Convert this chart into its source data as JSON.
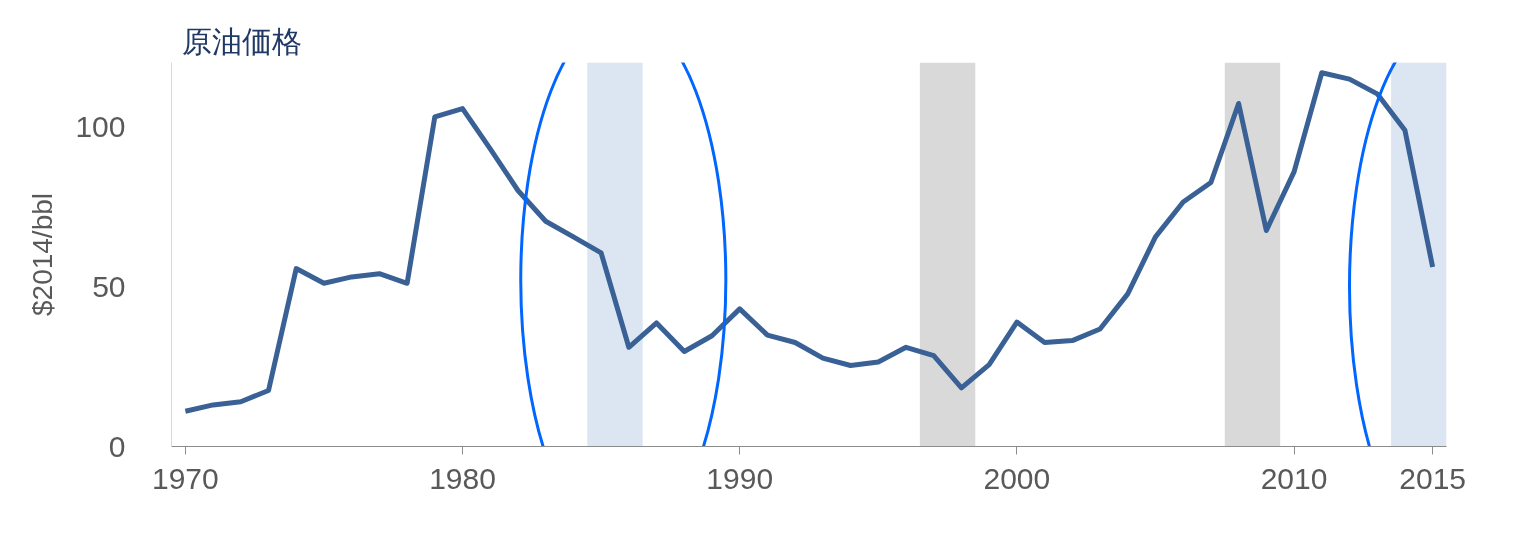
{
  "chart_data": {
    "type": "line",
    "title": "原油価格",
    "ylabel": "$2014/bbl",
    "x": [
      1970,
      1971,
      1972,
      1973,
      1974,
      1975,
      1976,
      1977,
      1978,
      1979,
      1980,
      1981,
      1982,
      1983,
      1984,
      1985,
      1986,
      1987,
      1988,
      1989,
      1990,
      1991,
      1992,
      1993,
      1994,
      1995,
      1996,
      1997,
      1998,
      1999,
      2000,
      2001,
      2002,
      2003,
      2004,
      2005,
      2006,
      2007,
      2008,
      2009,
      2010,
      2011,
      2012,
      2013,
      2014,
      2015
    ],
    "series": [
      {
        "color": "#3a6196",
        "values": [
          11,
          13,
          14,
          17.5,
          55.6,
          51,
          53,
          54,
          51,
          103,
          105.6,
          93,
          80,
          70.4,
          65.5,
          60.5,
          31,
          38.6,
          29.7,
          34.6,
          43,
          34.8,
          32.5,
          27.6,
          25.3,
          26.4,
          31,
          28.4,
          18.3,
          25.6,
          38.9,
          32.5,
          33.1,
          36.7,
          47.7,
          65.5,
          76.4,
          82.5,
          107.2,
          67.5,
          85.8,
          116.8,
          114.8,
          110.2,
          98.8,
          56.1
        ]
      }
    ],
    "xlim": [
      1969.5,
      2015.5
    ],
    "ylim": [
      0,
      120
    ],
    "xticks": [
      1970,
      1980,
      1990,
      2000,
      2010,
      2015
    ],
    "yticks": [
      0,
      50,
      100
    ],
    "bands": [
      {
        "axis": "x",
        "from": 1984.5,
        "to": 1986.5,
        "color": "#dce6f2"
      },
      {
        "axis": "x",
        "from": 1996.5,
        "to": 1998.5,
        "color": "#d9d9d9"
      },
      {
        "axis": "x",
        "from": 2007.5,
        "to": 2009.5,
        "color": "#d9d9d9"
      },
      {
        "axis": "x",
        "from": 2013.5,
        "to": 2015.5,
        "color": "#dce6f2"
      }
    ],
    "grid": false,
    "marker": "none",
    "line_style": "solid"
  }
}
